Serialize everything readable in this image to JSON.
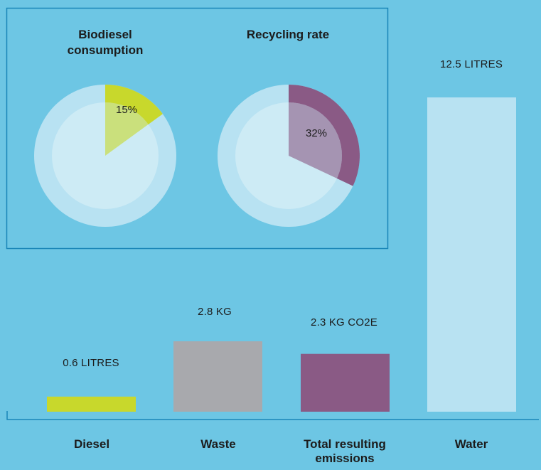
{
  "chart_data": [
    {
      "type": "pie",
      "title": "Biodiesel consumption",
      "value": 15,
      "value_label": "15%",
      "colors": {
        "slice": "#c8d82c",
        "ring": "#b8e2f2",
        "inner": "#cdebf5"
      }
    },
    {
      "type": "pie",
      "title": "Recycling rate",
      "value": 32,
      "value_label": "32%",
      "colors": {
        "slice": "#8a5a85",
        "ring": "#b8e2f2",
        "inner": "#cdebf5"
      }
    },
    {
      "type": "bar",
      "categories": [
        "Diesel",
        "Waste",
        "Total resulting emissions",
        "Water"
      ],
      "values": [
        0.6,
        2.8,
        2.3,
        12.5
      ],
      "value_labels": [
        "0.6 LITRES",
        "2.8 KG",
        "2.3 KG CO2E",
        "12.5 LITRES"
      ],
      "colors": [
        "#c8d82c",
        "#a8a9ad",
        "#8a5a85",
        "#b8e2f2"
      ],
      "units": [
        "LITRES",
        "KG",
        "KG CO2E",
        "LITRES"
      ]
    }
  ],
  "colors": {
    "background": "#6dc6e4",
    "frame": "#1a86b8"
  }
}
